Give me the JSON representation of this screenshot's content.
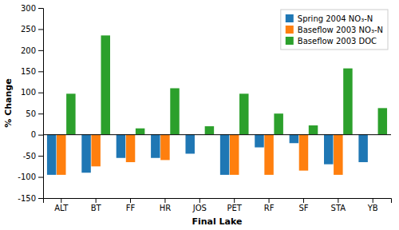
{
  "chart_data": {
    "type": "bar",
    "xlabel": "Final Lake",
    "ylabel": "% Change",
    "categories": [
      "ALT",
      "BT",
      "FF",
      "HR",
      "JOS",
      "PET",
      "RF",
      "SF",
      "STA",
      "YB"
    ],
    "series": [
      {
        "name": "Spring 2004 NO₃-N",
        "values": [
          -95,
          -90,
          -55,
          -55,
          -45,
          -95,
          -30,
          -20,
          -70,
          -65
        ]
      },
      {
        "name": "Baseflow 2003 NO₃-N",
        "values": [
          -95,
          -75,
          -65,
          -60,
          null,
          -95,
          -95,
          -85,
          -95,
          null
        ]
      },
      {
        "name": "Baseflow 2003 DOC",
        "values": [
          97,
          235,
          15,
          110,
          20,
          97,
          50,
          22,
          157,
          63
        ]
      }
    ],
    "ylim": [
      -150,
      300
    ],
    "yticks": [
      -150,
      -100,
      -50,
      0,
      50,
      100,
      150,
      200,
      250,
      300
    ],
    "legend": "upper-right"
  }
}
